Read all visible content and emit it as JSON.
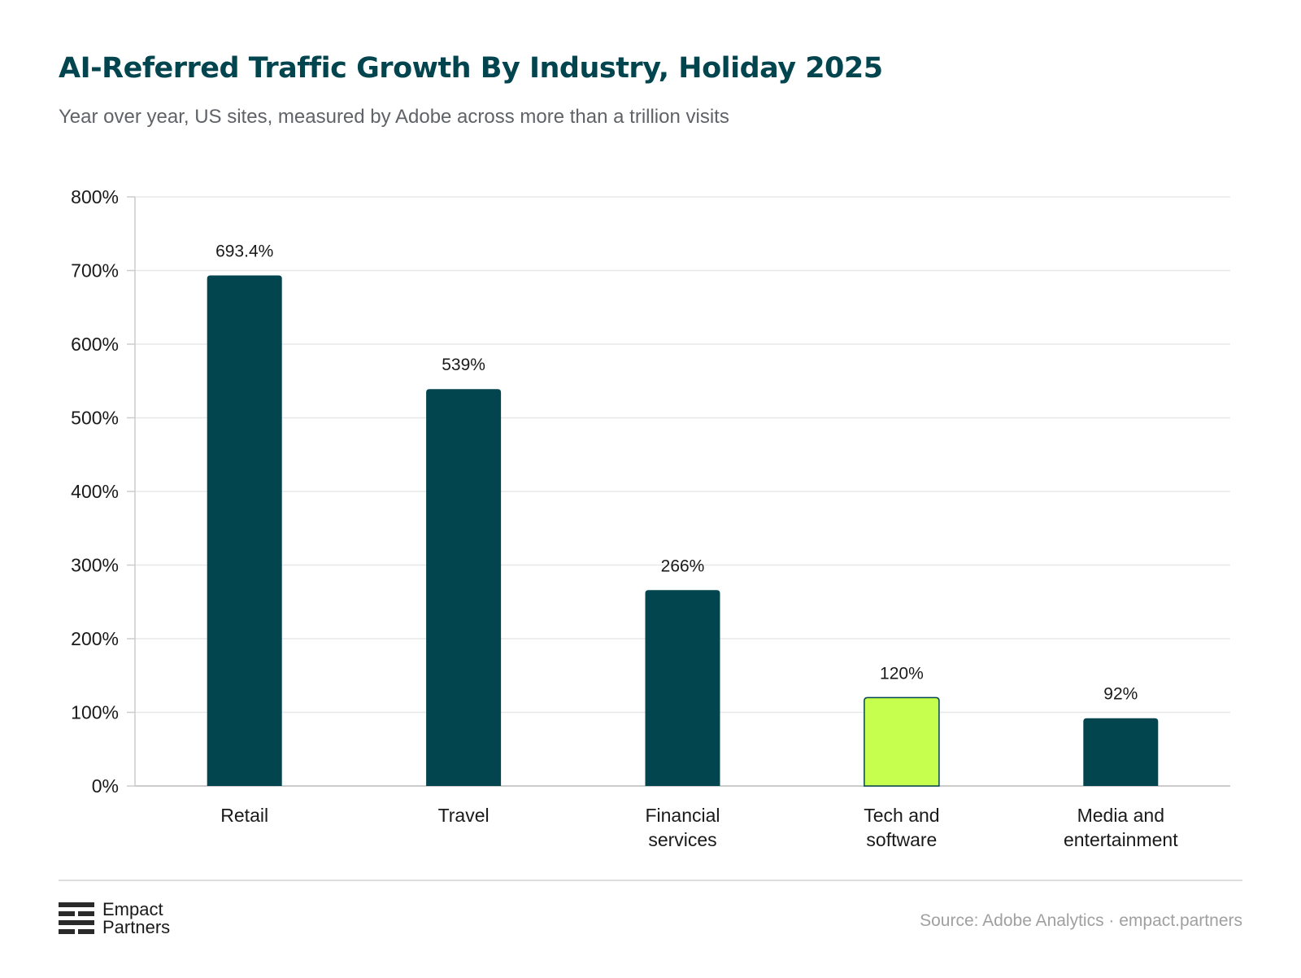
{
  "header": {
    "title": "AI-Referred Traffic Growth By Industry, Holiday 2025",
    "subtitle": "Year over year, US sites, measured by Adobe across more than a trillion visits"
  },
  "chart_data": {
    "type": "bar",
    "title": "AI-Referred Traffic Growth By Industry, Holiday 2025",
    "subtitle": "Year over year, US sites, measured by Adobe across more than a trillion visits",
    "categories": [
      [
        "Retail"
      ],
      [
        "Travel"
      ],
      [
        "Financial",
        "services"
      ],
      [
        "Tech and",
        "software"
      ],
      [
        "Media and",
        "entertainment"
      ]
    ],
    "values": [
      693.4,
      539,
      266,
      120,
      92
    ],
    "data_labels": [
      "693.4%",
      "539%",
      "266%",
      "120%",
      "92%"
    ],
    "highlight_index": 3,
    "colors": {
      "bar": "#03454f",
      "highlight": "#c6ff4e",
      "highlight_border": "#03454f",
      "grid": "#e8e8e8",
      "axis": "#cccccc"
    },
    "yticks": [
      0,
      100,
      200,
      300,
      400,
      500,
      600,
      700,
      800
    ],
    "ytick_labels": [
      "0%",
      "100%",
      "200%",
      "300%",
      "400%",
      "500%",
      "600%",
      "700%",
      "800%"
    ],
    "ylim": [
      0,
      800
    ],
    "grid": true,
    "legend": "none"
  },
  "footer": {
    "logo_icon": "empact-stripes-icon",
    "logo_line1": "Empact",
    "logo_line2": "Partners",
    "source": "Source: Adobe Analytics · empact.partners"
  }
}
